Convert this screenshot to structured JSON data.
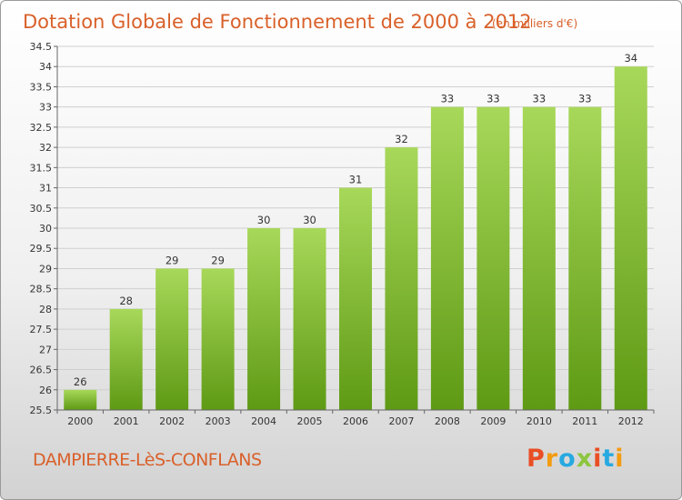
{
  "title": "Dotation Globale de Fonctionnement de 2000 à 2012",
  "subtitle": "(en milliers d'€)",
  "commune": "DAMPIERRE-LèS-CONFLANS",
  "logo": {
    "letters": [
      "P",
      "r",
      "o",
      "x",
      "i",
      "t",
      "i"
    ],
    "colors": [
      "#e94e24",
      "#f39c12",
      "#27a9e1",
      "#8cc63f",
      "#e94e24",
      "#27a9e1",
      "#f39c12"
    ]
  },
  "colors": {
    "bar_light": "#a8d85a",
    "bar_dark": "#5e9a14",
    "text_accent": "#d9602a"
  },
  "chart_data": {
    "type": "bar",
    "categories": [
      "2000",
      "2001",
      "2002",
      "2003",
      "2004",
      "2005",
      "2006",
      "2007",
      "2008",
      "2009",
      "2010",
      "2011",
      "2012"
    ],
    "values": [
      26,
      28,
      29,
      29,
      30,
      30,
      31,
      32,
      33,
      33,
      33,
      33,
      34
    ],
    "value_labels": [
      "26",
      "28",
      "29",
      "29",
      "30",
      "30",
      "31",
      "32",
      "33",
      "33",
      "33",
      "33",
      "34"
    ],
    "ylim": [
      25.5,
      34.5
    ],
    "yticks": [
      25.5,
      26,
      26.5,
      27,
      27.5,
      28,
      28.5,
      29,
      29.5,
      30,
      30.5,
      31,
      31.5,
      32,
      32.5,
      33,
      33.5,
      34,
      34.5
    ],
    "ytick_labels": [
      "25.5",
      "26",
      "26.5",
      "27",
      "27.5",
      "28",
      "28.5",
      "29",
      "29.5",
      "30",
      "30.5",
      "31",
      "31.5",
      "32",
      "32.5",
      "33",
      "33.5",
      "34",
      "34.5"
    ],
    "grid": true,
    "xlabel": "",
    "ylabel": ""
  }
}
